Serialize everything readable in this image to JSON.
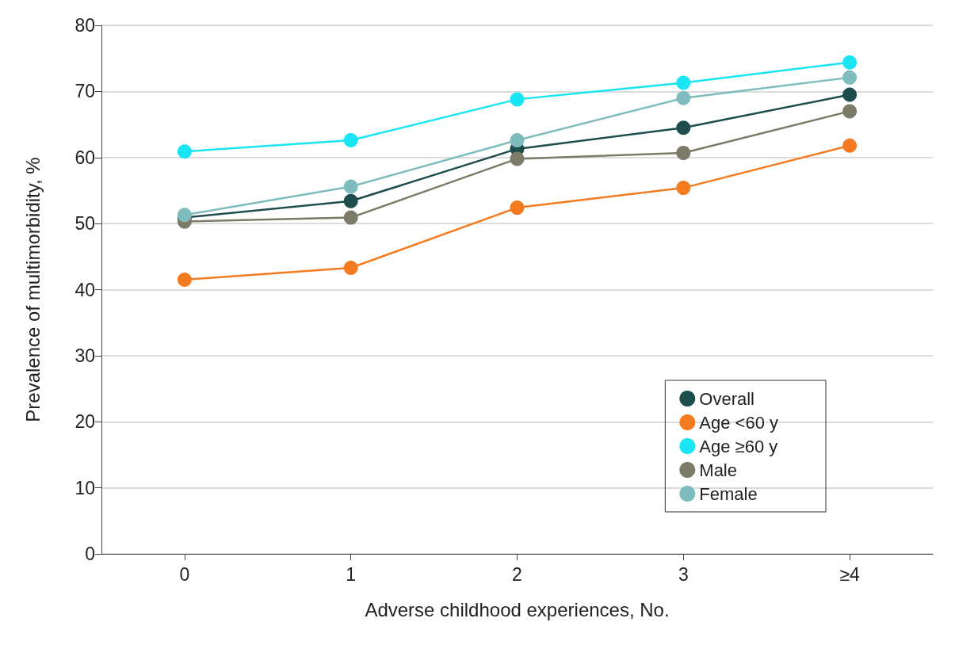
{
  "chart_data": {
    "type": "line",
    "xlabel": "Adverse childhood experiences, No.",
    "ylabel": "Prevalence of multimorbidity, %",
    "categories": [
      "0",
      "1",
      "2",
      "3",
      "≥4"
    ],
    "series": [
      {
        "name": "Overall",
        "color": "#1e4d4e",
        "values": [
          50.9,
          53.4,
          61.3,
          64.5,
          69.5
        ]
      },
      {
        "name": "Age <60 y",
        "color": "#f47b20",
        "values": [
          41.5,
          43.3,
          52.4,
          55.4,
          61.8
        ]
      },
      {
        "name": "Age ≥60 y",
        "color": "#1ae5f2",
        "values": [
          60.9,
          62.6,
          68.8,
          71.3,
          74.4
        ]
      },
      {
        "name": "Male",
        "color": "#7c7b68",
        "values": [
          50.3,
          50.9,
          59.8,
          60.7,
          67.0
        ]
      },
      {
        "name": "Female",
        "color": "#7fbcbd",
        "values": [
          51.3,
          55.6,
          62.6,
          69.0,
          72.1
        ]
      }
    ],
    "ylim": [
      0,
      80
    ],
    "yticks": [
      0,
      10,
      20,
      30,
      40,
      50,
      60,
      70,
      80
    ],
    "grid": "y",
    "legend": "bottom right",
    "marker": "circle",
    "line_style": "solid"
  }
}
